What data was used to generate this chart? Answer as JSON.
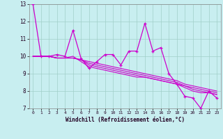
{
  "title": "",
  "xlabel": "Windchill (Refroidissement éolien,°C)",
  "ylabel": "",
  "background_color": "#c8eef0",
  "grid_color": "#a0cfc8",
  "line_color": "#cc00cc",
  "xlim": [
    -0.5,
    23.5
  ],
  "ylim": [
    7,
    13
  ],
  "yticks": [
    7,
    8,
    9,
    10,
    11,
    12,
    13
  ],
  "xticks": [
    0,
    1,
    2,
    3,
    4,
    5,
    6,
    7,
    8,
    9,
    10,
    11,
    12,
    13,
    14,
    15,
    16,
    17,
    18,
    19,
    20,
    21,
    22,
    23
  ],
  "series": [
    [
      13.0,
      10.0,
      10.0,
      10.1,
      10.0,
      11.5,
      9.9,
      9.3,
      9.7,
      10.1,
      10.1,
      9.5,
      10.3,
      10.3,
      11.9,
      10.3,
      10.5,
      9.0,
      8.4,
      7.7,
      7.6,
      7.0,
      8.0,
      7.6
    ],
    [
      10.0,
      10.0,
      10.0,
      9.9,
      9.9,
      10.0,
      9.7,
      9.4,
      9.3,
      9.2,
      9.1,
      9.0,
      8.9,
      8.8,
      8.8,
      8.7,
      8.6,
      8.5,
      8.4,
      8.2,
      8.0,
      7.9,
      7.9,
      7.8
    ],
    [
      10.0,
      10.0,
      10.0,
      9.9,
      9.9,
      9.9,
      9.8,
      9.5,
      9.4,
      9.3,
      9.2,
      9.1,
      9.0,
      8.9,
      8.8,
      8.7,
      8.6,
      8.5,
      8.4,
      8.3,
      8.1,
      8.0,
      7.9,
      7.8
    ],
    [
      10.0,
      10.0,
      10.0,
      9.9,
      9.9,
      9.9,
      9.8,
      9.6,
      9.5,
      9.4,
      9.3,
      9.2,
      9.1,
      9.0,
      8.9,
      8.8,
      8.7,
      8.6,
      8.5,
      8.3,
      8.2,
      8.1,
      8.0,
      7.9
    ],
    [
      10.0,
      10.0,
      10.0,
      9.9,
      9.9,
      9.9,
      9.8,
      9.7,
      9.6,
      9.5,
      9.4,
      9.3,
      9.2,
      9.1,
      9.0,
      8.9,
      8.8,
      8.7,
      8.6,
      8.4,
      8.3,
      8.2,
      8.1,
      8.0
    ]
  ]
}
